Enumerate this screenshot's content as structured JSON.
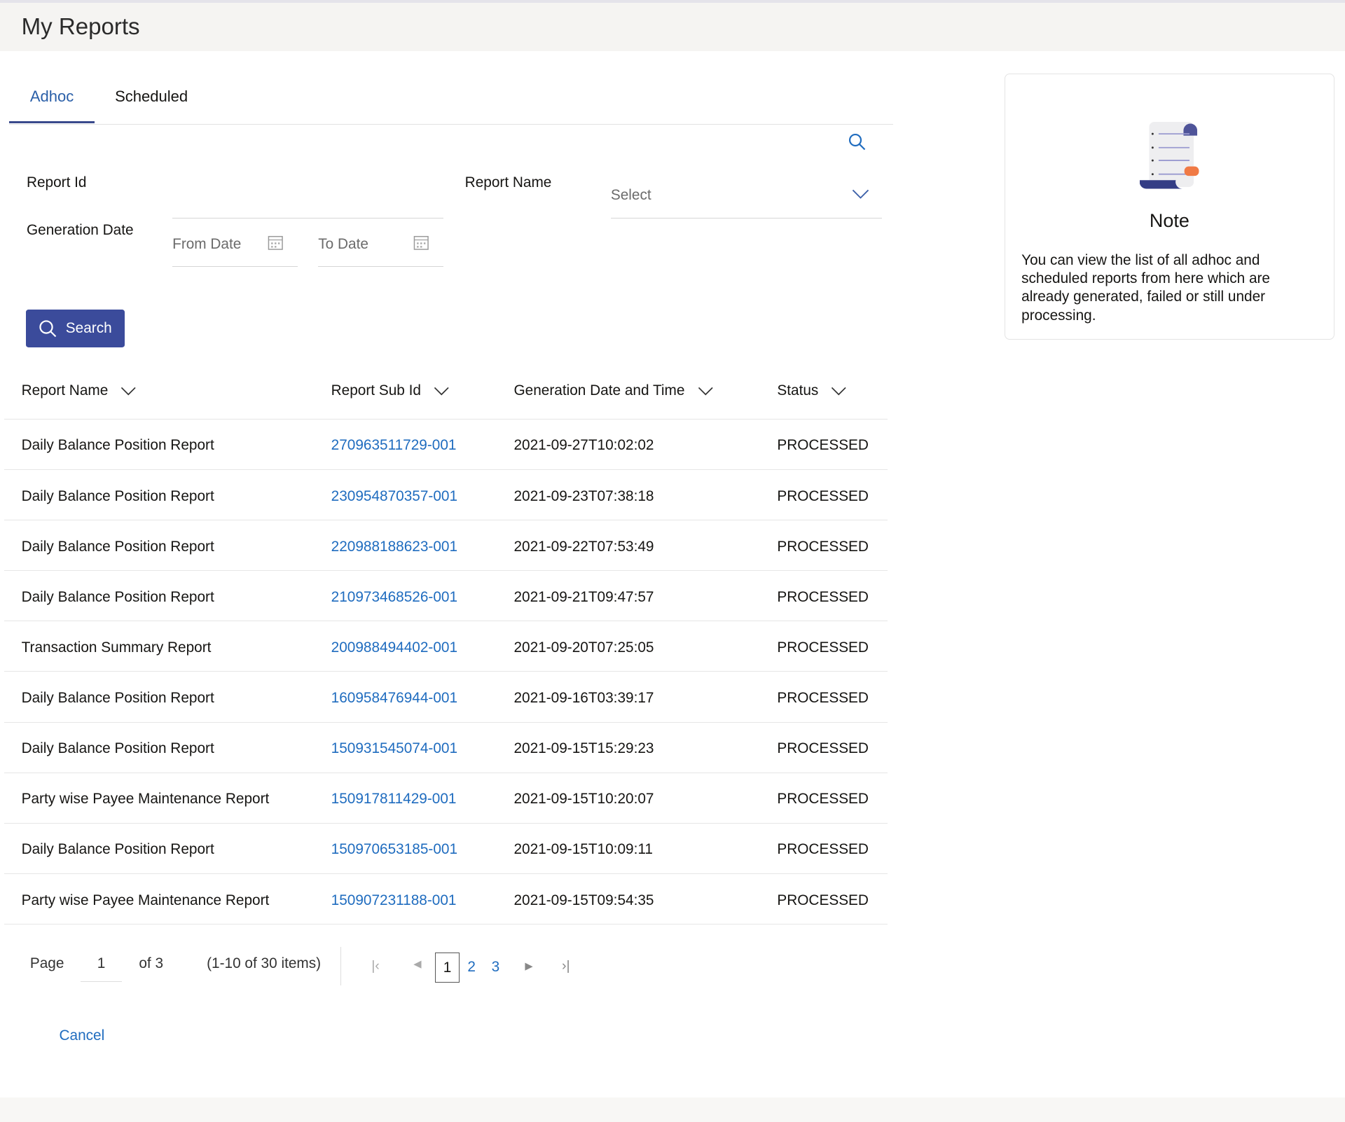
{
  "page": {
    "title": "My Reports"
  },
  "tabs": [
    {
      "label": "Adhoc",
      "active": true
    },
    {
      "label": "Scheduled",
      "active": false
    }
  ],
  "filters": {
    "report_id_label": "Report Id",
    "report_name_label": "Report Name",
    "report_name_placeholder": "Select",
    "generation_date_label": "Generation Date",
    "from_date_placeholder": "From Date",
    "to_date_placeholder": "To Date",
    "search_button": "Search"
  },
  "table": {
    "columns": [
      "Report Name",
      "Report Sub Id",
      "Generation Date and Time",
      "Status"
    ],
    "rows": [
      [
        "Daily Balance Position Report",
        "270963511729-001",
        "2021-09-27T10:02:02",
        "PROCESSED"
      ],
      [
        "Daily Balance Position Report",
        "230954870357-001",
        "2021-09-23T07:38:18",
        "PROCESSED"
      ],
      [
        "Daily Balance Position Report",
        "220988188623-001",
        "2021-09-22T07:53:49",
        "PROCESSED"
      ],
      [
        "Daily Balance Position Report",
        "210973468526-001",
        "2021-09-21T09:47:57",
        "PROCESSED"
      ],
      [
        "Transaction Summary Report",
        "200988494402-001",
        "2021-09-20T07:25:05",
        "PROCESSED"
      ],
      [
        "Daily Balance Position Report",
        "160958476944-001",
        "2021-09-16T03:39:17",
        "PROCESSED"
      ],
      [
        "Daily Balance Position Report",
        "150931545074-001",
        "2021-09-15T15:29:23",
        "PROCESSED"
      ],
      [
        "Party wise Payee Maintenance Report",
        "150917811429-001",
        "2021-09-15T10:20:07",
        "PROCESSED"
      ],
      [
        "Daily Balance Position Report",
        "150970653185-001",
        "2021-09-15T10:09:11",
        "PROCESSED"
      ],
      [
        "Party wise Payee Maintenance Report",
        "150907231188-001",
        "2021-09-15T09:54:35",
        "PROCESSED"
      ]
    ]
  },
  "pagination": {
    "page_label": "Page",
    "current_page": "1",
    "of_label": "of 3",
    "items_label": "(1-10 of 30 items)",
    "pages": [
      "1",
      "2",
      "3"
    ]
  },
  "cancel_label": "Cancel",
  "note": {
    "title": "Note",
    "text": "You can view the list of all adhoc and scheduled reports from here which are already generated, failed or still under processing."
  },
  "colors": {
    "primary": "#3b4b9b",
    "link": "#1f6cbf"
  }
}
